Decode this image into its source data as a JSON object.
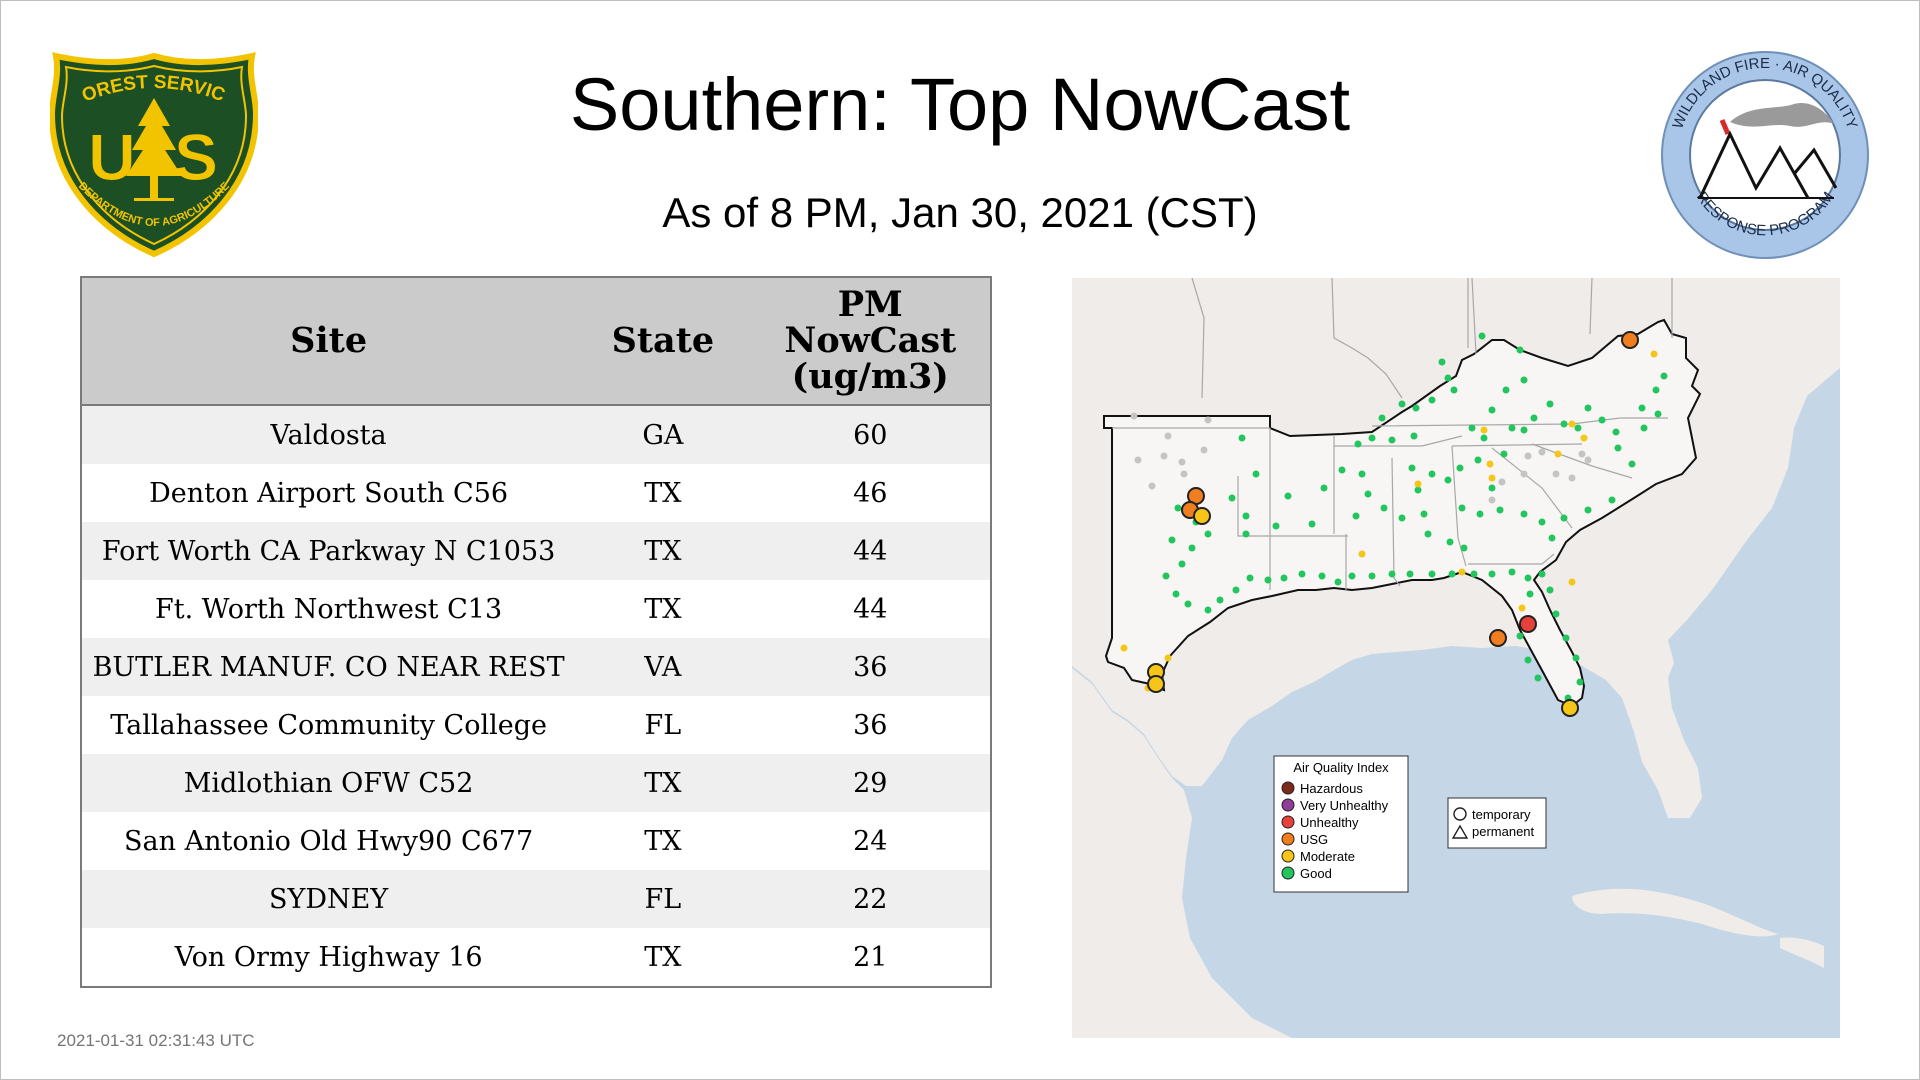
{
  "header": {
    "title": "Southern: Top NowCast",
    "subtitle": "As of  8 PM, Jan 30, 2021 (CST)"
  },
  "logos": {
    "left": {
      "name": "forest-service-shield",
      "top_text": "FOREST SERVICE",
      "letters": "U S",
      "bottom_text": "DEPARTMENT OF AGRICULTURE",
      "colors": {
        "green": "#1d4f24",
        "gold": "#f2c400"
      }
    },
    "right": {
      "name": "wildland-fire-air-quality-seal",
      "top_text": "WILDLAND FIRE · AIR QUALITY",
      "bottom_text": "RESPONSE PROGRAM",
      "colors": {
        "ring": "#a9c6e8"
      }
    }
  },
  "table": {
    "headers": {
      "site": "Site",
      "state": "State",
      "pm_line1": "PM",
      "pm_line2": "NowCast",
      "pm_line3": "(ug/m3)"
    },
    "rows": [
      {
        "site": "Valdosta",
        "state": "GA",
        "value": "60"
      },
      {
        "site": "Denton Airport South C56",
        "state": "TX",
        "value": "46"
      },
      {
        "site": "Fort Worth CA Parkway N C1053",
        "state": "TX",
        "value": "44"
      },
      {
        "site": "Ft. Worth Northwest C13",
        "state": "TX",
        "value": "44"
      },
      {
        "site": "BUTLER MANUF. CO NEAR REST",
        "state": "VA",
        "value": "36"
      },
      {
        "site": "Tallahassee Community College",
        "state": "FL",
        "value": "36"
      },
      {
        "site": "Midlothian OFW C52",
        "state": "TX",
        "value": "29"
      },
      {
        "site": "San Antonio Old Hwy90 C677",
        "state": "TX",
        "value": "24"
      },
      {
        "site": "SYDNEY",
        "state": "FL",
        "value": "22"
      },
      {
        "site": "Von Ormy Highway 16",
        "state": "TX",
        "value": "21"
      }
    ]
  },
  "map": {
    "legend": {
      "title": "Air Quality Index",
      "items": [
        {
          "label": "Hazardous",
          "color": "#7e2a1a"
        },
        {
          "label": "Very Unhealthy",
          "color": "#8f3f97"
        },
        {
          "label": "Unhealthy",
          "color": "#e8413a"
        },
        {
          "label": "USG",
          "color": "#f07d1e"
        },
        {
          "label": "Moderate",
          "color": "#f5c518"
        },
        {
          "label": "Good",
          "color": "#22c55e"
        }
      ]
    },
    "shape_legend": {
      "temporary": "temporary",
      "permanent": "permanent"
    },
    "colors": {
      "water": "#c5d6e6",
      "land": "#efece9",
      "region": "#f7f6f5",
      "border": "#a8a8a8",
      "region_outline": "#111111",
      "nodata": "#c4c4c4"
    }
  },
  "footer": {
    "timestamp": "2021-01-31 02:31:43 UTC"
  }
}
